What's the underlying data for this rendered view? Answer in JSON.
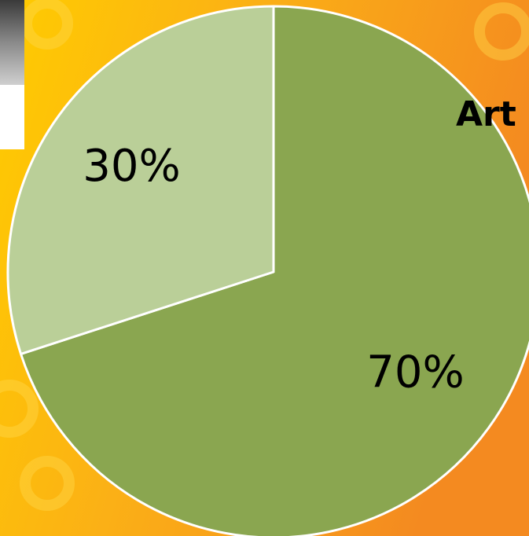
{
  "chart_data": {
    "type": "pie",
    "title": "Art",
    "values": [
      70,
      30
    ],
    "value_labels": [
      "70%",
      "30%"
    ],
    "colors": [
      "#8aa650",
      "#bacf98"
    ],
    "start_angle": -90,
    "direction": "clockwise"
  }
}
